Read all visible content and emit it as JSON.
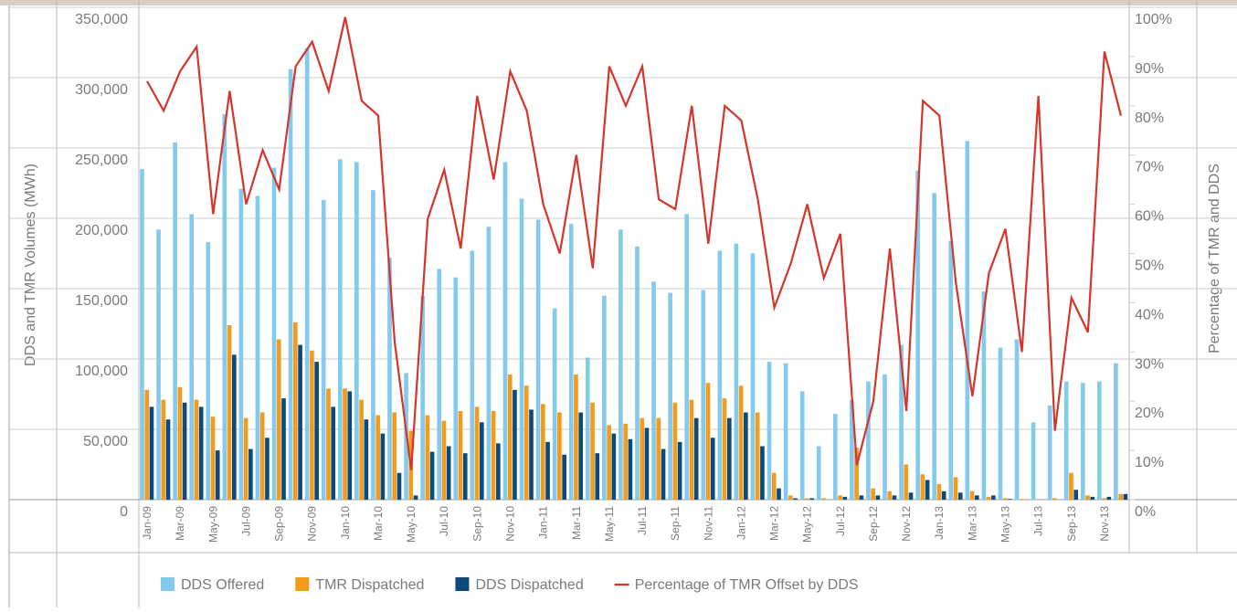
{
  "chart_data": {
    "type": "bar",
    "y_label": "DDS and TMR Volumes (MWh)",
    "y2_label": "Percentage of TMR and DDS",
    "categories": [
      "Jan-09",
      null,
      "Mar-09",
      null,
      "May-09",
      null,
      "Jul-09",
      null,
      "Sep-09",
      null,
      "Nov-09",
      null,
      "Jan-10",
      null,
      "Mar-10",
      null,
      "May-10",
      null,
      "Jul-10",
      null,
      "Sep-10",
      null,
      "Nov-10",
      null,
      "Jan-11",
      null,
      "Mar-11",
      null,
      "May-11",
      null,
      "Jul-11",
      null,
      "Sep-11",
      null,
      "Nov-11",
      null,
      "Jan-12",
      null,
      "Mar-12",
      null,
      "May-12",
      null,
      "Jul-12",
      null,
      "Sep-12",
      null,
      "Nov-12",
      null,
      "Jan-13",
      null,
      "Mar-13",
      null,
      "May-13",
      null,
      "Jul-13",
      null,
      "Sep-13",
      null,
      "Nov-13",
      null
    ],
    "ylim": [
      0,
      350000
    ],
    "yticks": [
      0,
      {
        "value": 50000,
        "label": "50,000"
      },
      {
        "value": 100000,
        "label": "100,000"
      },
      {
        "value": 150000,
        "label": "150,000"
      },
      {
        "value": 200000,
        "label": "200,000"
      },
      {
        "value": 250000,
        "label": "250,000"
      },
      {
        "value": 300000,
        "label": "300,000"
      },
      {
        "value": 350000,
        "label": "350,000"
      }
    ],
    "y2lim": [
      0,
      100
    ],
    "y2ticks": [
      {
        "value": 0,
        "label": "0%"
      },
      {
        "value": 10,
        "label": "10%"
      },
      {
        "value": 20,
        "label": "20%"
      },
      {
        "value": 30,
        "label": "30%"
      },
      {
        "value": 40,
        "label": "40%"
      },
      {
        "value": 50,
        "label": "50%"
      },
      {
        "value": 60,
        "label": "60%"
      },
      {
        "value": 70,
        "label": "70%"
      },
      {
        "value": 80,
        "label": "80%"
      },
      {
        "value": 90,
        "label": "90%"
      },
      {
        "value": 100,
        "label": "100%"
      }
    ],
    "grid": true,
    "legend": "bottom",
    "series": [
      {
        "name": "DDS Offered",
        "color": "#84c9ee",
        "type": "bar",
        "values": [
          235000,
          192000,
          254000,
          203000,
          183000,
          274000,
          221000,
          216000,
          236000,
          306000,
          321000,
          213000,
          242000,
          240000,
          220000,
          172000,
          90000,
          145000,
          164000,
          158000,
          177000,
          194000,
          240000,
          214000,
          199000,
          136000,
          196000,
          101000,
          145000,
          192000,
          180000,
          155000,
          147000,
          203000,
          149000,
          177000,
          182000,
          175000,
          98000,
          97000,
          77000,
          38000,
          61000,
          71000,
          84000,
          89000,
          110000,
          234000,
          218000,
          184000,
          255000,
          148000,
          108000,
          114000,
          55000,
          67000,
          84000,
          83000,
          84000,
          97000
        ]
      },
      {
        "name": "TMR Dispatched",
        "color": "#f29b1d",
        "type": "bar",
        "values": [
          78000,
          71000,
          80000,
          71000,
          59000,
          124000,
          58000,
          62000,
          114000,
          126000,
          106000,
          79000,
          79000,
          71000,
          60000,
          62000,
          49000,
          60000,
          56000,
          63000,
          66000,
          63000,
          89000,
          81000,
          68000,
          62000,
          89000,
          69000,
          53000,
          54000,
          58000,
          58000,
          69000,
          71000,
          83000,
          72000,
          81000,
          62000,
          19000,
          3000,
          1000,
          1000,
          3000,
          37000,
          8000,
          6000,
          25000,
          18000,
          11000,
          16000,
          6000,
          2000,
          1000,
          500,
          0,
          1000,
          19000,
          3000,
          1000,
          4000
        ]
      },
      {
        "name": "DDS Dispatched",
        "color": "#0b4a7d",
        "type": "bar",
        "values": [
          66000,
          57000,
          69000,
          66000,
          35000,
          103000,
          36000,
          44000,
          72000,
          110000,
          98000,
          66000,
          77000,
          57000,
          47000,
          19000,
          3000,
          34000,
          38000,
          33000,
          55000,
          40000,
          78000,
          64000,
          41000,
          32000,
          62000,
          33000,
          47000,
          43000,
          51000,
          36000,
          41000,
          58000,
          44000,
          58000,
          62000,
          38000,
          8000,
          1000,
          1000,
          0,
          2000,
          3000,
          3000,
          3000,
          5000,
          14000,
          6000,
          5000,
          3000,
          3000,
          500,
          0,
          0,
          0,
          7000,
          2000,
          2000,
          4000
        ]
      },
      {
        "name": "Percentage of TMR Offset by DDS",
        "color": "#d5352a",
        "type": "line",
        "axis": "y2",
        "values": [
          85,
          79,
          87,
          92,
          58,
          83,
          60,
          71,
          63,
          88,
          93,
          83,
          98,
          81,
          78,
          32,
          6,
          57,
          67,
          51,
          82,
          65,
          87,
          79,
          60,
          50,
          70,
          47,
          88,
          80,
          88,
          61,
          59,
          80,
          52,
          80,
          77,
          61,
          39,
          48,
          60,
          45,
          54,
          7,
          20,
          51,
          18,
          81,
          78,
          44,
          21,
          46,
          55,
          30,
          82,
          14,
          41,
          34,
          91,
          78
        ]
      }
    ]
  }
}
